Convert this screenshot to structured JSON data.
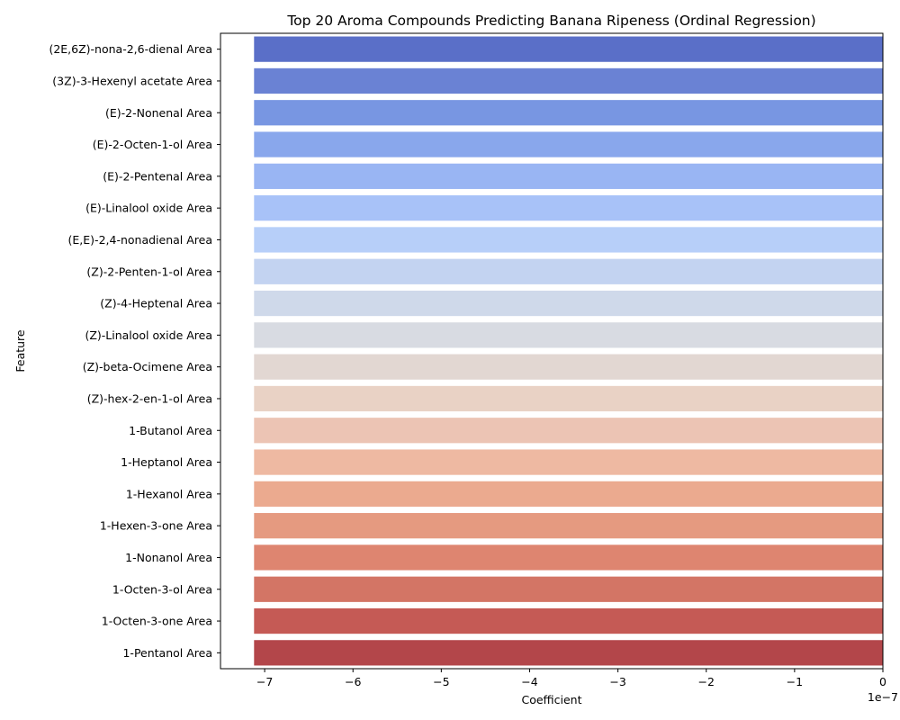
{
  "chart_data": {
    "type": "bar",
    "orientation": "horizontal",
    "title": "Top 20 Aroma Compounds Predicting Banana Ripeness (Ordinal Regression)",
    "xlabel": "Coefficient",
    "ylabel": "Feature",
    "x_offset_label": "1e−7",
    "xlim": [
      -7.5e-07,
      0
    ],
    "xticks": [
      -7e-07,
      -6e-07,
      -5e-07,
      -4e-07,
      -3e-07,
      -2e-07,
      -1e-07,
      0
    ],
    "xtick_labels": [
      "−7",
      "−6",
      "−5",
      "−4",
      "−3",
      "−2",
      "−1",
      "0"
    ],
    "grid": false,
    "colormap": "coolwarm",
    "categories": [
      "(2E,6Z)-nona-2,6-dienal Area",
      "(3Z)-3-Hexenyl acetate Area",
      "(E)-2-Nonenal Area",
      "(E)-2-Octen-1-ol Area",
      "(E)-2-Pentenal Area",
      "(E)-Linalool oxide Area",
      "(E,E)-2,4-nonadienal Area",
      "(Z)-2-Penten-1-ol Area",
      "(Z)-4-Heptenal Area",
      "(Z)-Linalool oxide Area",
      "(Z)-beta-Ocimene Area",
      "(Z)-hex-2-en-1-ol Area",
      "1-Butanol Area",
      "1-Heptanol Area",
      "1-Hexanol Area",
      "1-Hexen-3-one Area",
      "1-Nonanol Area",
      "1-Octen-3-ol Area",
      "1-Octen-3-one Area",
      "1-Pentanol Area"
    ],
    "values": [
      -7.12e-07,
      -7.12e-07,
      -7.12e-07,
      -7.12e-07,
      -7.12e-07,
      -7.12e-07,
      -7.12e-07,
      -7.12e-07,
      -7.12e-07,
      -7.12e-07,
      -7.12e-07,
      -7.12e-07,
      -7.12e-07,
      -7.12e-07,
      -7.12e-07,
      -7.12e-07,
      -7.12e-07,
      -7.12e-07,
      -7.12e-07,
      -7.12e-07
    ],
    "colors": [
      "#5a6fc8",
      "#6a82d4",
      "#7896e2",
      "#89a7ec",
      "#99b5f3",
      "#a8c2f8",
      "#b7cff9",
      "#c3d3f1",
      "#cfd9ea",
      "#d8dbe2",
      "#e2d7d2",
      "#e9d2c5",
      "#ecc4b4",
      "#eeb9a2",
      "#ebaa8f",
      "#e59a80",
      "#de8570",
      "#d37565",
      "#c55a55",
      "#b3464a"
    ]
  }
}
